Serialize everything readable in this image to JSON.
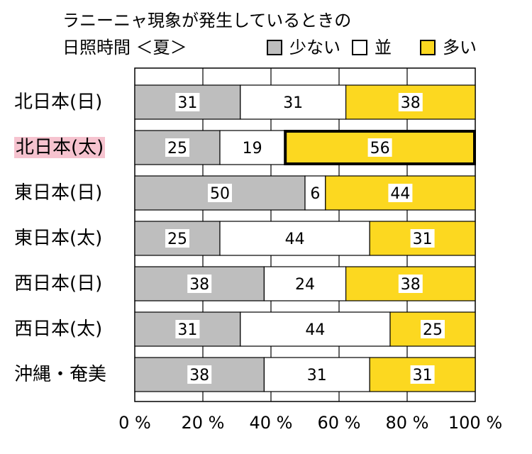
{
  "title_line1": "ラニーニャ現象が発生しているときの",
  "title_line2": "日照時間 ＜夏＞",
  "legend": [
    {
      "label": "少ない",
      "color": "#bebebe"
    },
    {
      "label": "並",
      "color": "#ffffff"
    },
    {
      "label": "多い",
      "color": "#fcd820"
    }
  ],
  "highlight_color": "#f6c3cf",
  "chart_data": {
    "type": "bar",
    "orientation": "horizontal",
    "stacked": true,
    "title": "ラニーニャ現象が発生しているときの 日照時間 ＜夏＞",
    "categories": [
      "北日本(日)",
      "北日本(太)",
      "東日本(日)",
      "東日本(太)",
      "西日本(日)",
      "西日本(太)",
      "沖縄・奄美"
    ],
    "series": [
      {
        "name": "少ない",
        "color": "#bebebe",
        "values": [
          31,
          25,
          50,
          25,
          38,
          31,
          38
        ]
      },
      {
        "name": "並",
        "color": "#ffffff",
        "values": [
          31,
          19,
          6,
          44,
          24,
          44,
          31
        ]
      },
      {
        "name": "多い",
        "color": "#fcd820",
        "values": [
          38,
          56,
          44,
          31,
          38,
          25,
          31
        ]
      }
    ],
    "x_ticks": [
      "0 %",
      "20 %",
      "40 %",
      "60 %",
      "80 %",
      "100 %"
    ],
    "xlim": [
      0,
      100
    ],
    "grid": true,
    "highlighted_category": "北日本(太)",
    "emphasized_segment": {
      "category": "北日本(太)",
      "series": "多い"
    }
  }
}
